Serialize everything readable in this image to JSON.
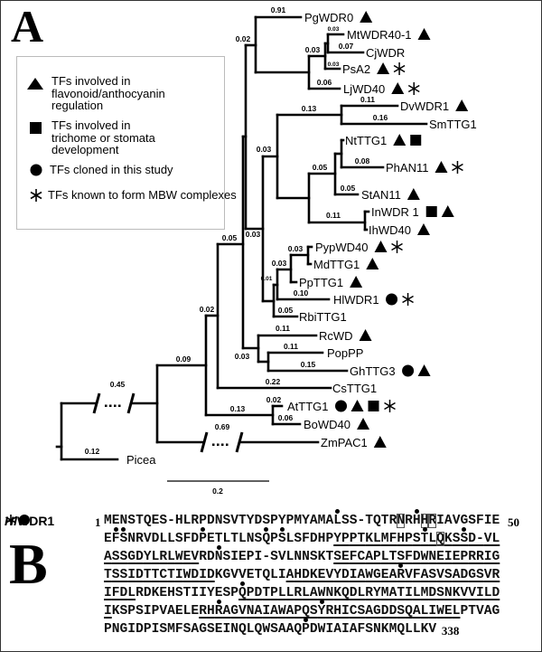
{
  "panel_a_label": "A",
  "panel_b_label": "B",
  "legend": [
    {
      "symbol": "triangle",
      "text": "TFs involved in flavonoid/anthocyanin regulation",
      "lines": [
        "TFs involved in",
        "flavonoid/anthocyanin",
        "regulation"
      ]
    },
    {
      "symbol": "square",
      "text": "TFs involved in trichome or stomata development",
      "lines": [
        "TFs involved in",
        "trichome or stomata",
        "development"
      ]
    },
    {
      "symbol": "circle",
      "text": "TFs cloned in this study",
      "lines": [
        "TFs cloned in this study"
      ]
    },
    {
      "symbol": "asterisk",
      "text": "TFs known to form MBW complexes",
      "lines": [
        "TFs known to form MBW complexes"
      ]
    }
  ],
  "tree": {
    "leaves": [
      {
        "name": "PgWDR0",
        "markers": [
          "triangle"
        ]
      },
      {
        "name": "MtWDR40-1",
        "markers": [
          "triangle"
        ]
      },
      {
        "name": "CjWDR",
        "markers": []
      },
      {
        "name": "PsA2",
        "markers": [
          "triangle",
          "asterisk"
        ]
      },
      {
        "name": "LjWD40",
        "markers": [
          "triangle",
          "asterisk"
        ]
      },
      {
        "name": "DvWDR1",
        "markers": [
          "triangle"
        ]
      },
      {
        "name": "SmTTG1",
        "markers": []
      },
      {
        "name": "NtTTG1",
        "markers": [
          "triangle",
          "square"
        ]
      },
      {
        "name": "PhAN11",
        "markers": [
          "triangle",
          "asterisk"
        ]
      },
      {
        "name": "StAN11",
        "markers": [
          "triangle"
        ]
      },
      {
        "name": "InWDR 1",
        "markers": [
          "square",
          "triangle"
        ]
      },
      {
        "name": "IhWD40",
        "markers": [
          "triangle"
        ]
      },
      {
        "name": "PypWD40",
        "markers": [
          "triangle",
          "asterisk"
        ]
      },
      {
        "name": "MdTTG1",
        "markers": [
          "triangle"
        ]
      },
      {
        "name": "PpTTG1",
        "markers": [
          "triangle"
        ]
      },
      {
        "name": "HlWDR1",
        "markers": [
          "circle",
          "asterisk"
        ]
      },
      {
        "name": "RbiTTG1",
        "markers": []
      },
      {
        "name": "RcWD",
        "markers": [
          "triangle"
        ]
      },
      {
        "name": "PopPP",
        "markers": []
      },
      {
        "name": "GhTTG3",
        "markers": [
          "circle",
          "triangle"
        ]
      },
      {
        "name": "CsTTG1",
        "markers": []
      },
      {
        "name": "AtTTG1",
        "markers": [
          "circle",
          "triangle",
          "square",
          "asterisk"
        ]
      },
      {
        "name": "BoWD40",
        "markers": [
          "triangle"
        ]
      },
      {
        "name": "ZmPAC1",
        "markers": [
          "triangle"
        ]
      },
      {
        "name": "Picea",
        "markers": []
      }
    ],
    "branch_lengths": [
      "0.91",
      "0.02",
      "0.03",
      "0.07",
      "0.03",
      "0.03",
      "0.06",
      "0.13",
      "0.11",
      "0.16",
      "0.03",
      "0.05",
      "0.08",
      "0.05",
      "0.11",
      "0.03",
      "0.05",
      "0.03",
      "0.03",
      "0.01",
      "0.10",
      "0.05",
      "0.11",
      "0.03",
      "0.11",
      "0.15",
      "0.22",
      "0.02",
      "0.09",
      "0.02",
      "0.13",
      "0.06",
      "0.69",
      "0.45",
      "0.12"
    ],
    "scale_bar": "0.2"
  },
  "sequence": {
    "name_italic": "Hl",
    "name_rest": "WDR1",
    "name_markers": [
      "asterisk",
      "circle"
    ],
    "start": "1",
    "mid_number": "50",
    "end": "338",
    "lines": [
      {
        "text": "MENSTQES-HLRPDNSVTYDSPYPMYAMALSS-TQTRNRHHRIAVGSFIE",
        "underline": [],
        "dots": [
          29,
          39
        ],
        "boxed": [
          37,
          40,
          41
        ]
      },
      {
        "text": "EFSNRVDLLSFDPETLTLNSQPSLSFDHPYPPTKLMFHPSTLQKSSD-VL",
        "underline": [
          [
            29,
            50
          ]
        ],
        "dots": [
          1,
          2,
          12,
          20,
          22,
          40,
          45
        ],
        "boxed": [
          42
        ]
      },
      {
        "text": "ASSGDYLRLWEVRDNSIEPI-SVLNNSKTSEFCAPLTSFDWNEIEPRRIG",
        "underline": [
          [
            0,
            12
          ],
          [
            29,
            50
          ]
        ],
        "dots": [
          14
        ],
        "boxed": []
      },
      {
        "text": "TSSIDTTCTIWDIDKGVVETQLIAHDKEVYDIAWGEARVFASVSADGSVR",
        "underline": [
          [
            0,
            14
          ],
          [
            23,
            50
          ]
        ],
        "dots": [
          37
        ],
        "boxed": []
      },
      {
        "text": "IFDLRDKEHSTIIYESPQPDTPLLRLAWNKQDLRYMATILMDSNKVVILD",
        "underline": [
          [
            0,
            4
          ],
          [
            17,
            50
          ]
        ],
        "dots": [
          17
        ],
        "boxed": []
      },
      {
        "text": "IKSPSIPVAELERHRAGVNAIAWAPQSYRHICSAGDDSQALIWELPTVAG",
        "underline": [
          [
            0,
            1
          ],
          [
            12,
            45
          ]
        ],
        "dots": [
          14,
          27
        ],
        "boxed": []
      },
      {
        "text": "PNGIDPISMFSAGSEINQLQWSAAQPDWIAIAFSNKMQLLKV",
        "underline": [],
        "dots": [
          25
        ],
        "boxed": []
      }
    ]
  }
}
